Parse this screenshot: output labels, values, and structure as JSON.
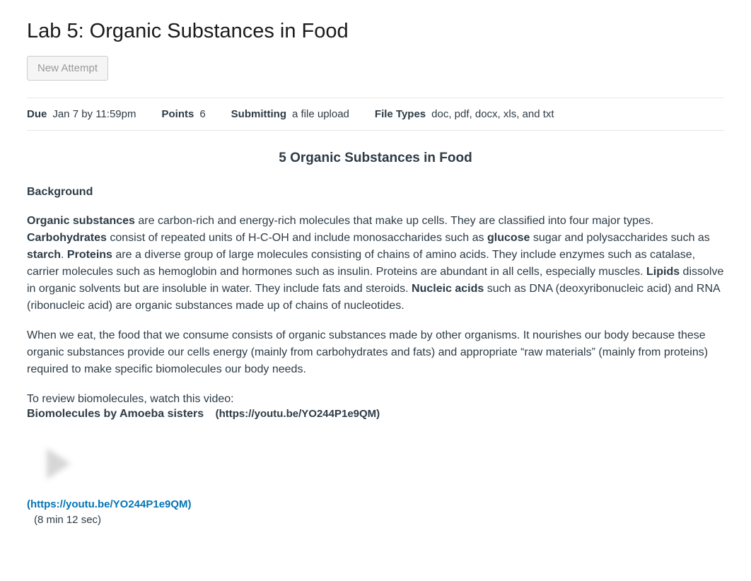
{
  "title": "Lab 5: Organic Substances in Food",
  "buttons": {
    "new_attempt": "New Attempt"
  },
  "meta": {
    "due_label": "Due",
    "due_value": "Jan 7 by 11:59pm",
    "points_label": "Points",
    "points_value": "6",
    "submitting_label": "Submitting",
    "submitting_value": "a file upload",
    "filetypes_label": "File Types",
    "filetypes_value": "doc, pdf, docx, xls, and txt"
  },
  "content": {
    "main_title": "5 Organic Substances in Food",
    "background_heading": "Background",
    "p1": {
      "t1": "Organic substances",
      "t2": " are carbon-rich and energy-rich molecules that make up cells. They are classified into four major types. ",
      "t3": "Carbohydrates",
      "t4": " consist of repeated units of H-C-OH and include monosaccharides such as ",
      "t5": "glucose",
      "t6": " sugar and polysaccharides such as ",
      "t7": "starch",
      "t8": ". ",
      "t9": "Proteins",
      "t10": " are a diverse group of large molecules consisting of chains of amino acids. They include enzymes such as catalase, carrier molecules such as hemoglobin and hormones such as insulin. Proteins are abundant in all cells, especially muscles. ",
      "t11": "Lipids",
      "t12": " dissolve in organic solvents but are insoluble in water. They include fats and steroids. ",
      "t13": "Nucleic acids",
      "t14": " such as DNA (deoxyribonucleic acid) and RNA (ribonucleic acid) are organic substances made up of chains of nucleotides."
    },
    "p2": "When we eat, the food that we consume consists of organic substances made by other organisms. It nourishes our body because these organic substances provide our cells energy (mainly from carbohydrates and fats) and appropriate “raw materials” (mainly from proteins) required to make specific biomolecules our body needs.",
    "review_intro": "To review biomolecules, watch this video:",
    "video_title": "Biomolecules by Amoeba sisters",
    "video_url_inline": "(https://youtu.be/YO244P1e9QM)",
    "video_link": "(https://youtu.be/YO244P1e9QM)",
    "video_duration": "(8 min 12 sec)"
  },
  "colors": {
    "link": "#0374b5",
    "text": "#2d3b45",
    "border": "#e7e7e7"
  }
}
